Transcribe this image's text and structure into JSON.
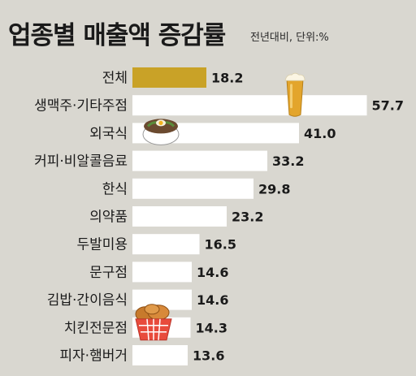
{
  "header": {
    "title": "업종별 매출액 증감률",
    "subtitle": "전년대비, 단위:%"
  },
  "colors": {
    "background": "#d9d7d0",
    "highlight_bar": "#c9a227",
    "bar": "#ffffff",
    "text": "#1a1a1a"
  },
  "chart_data": {
    "type": "bar",
    "orientation": "horizontal",
    "title": "업종별 매출액 증감률",
    "subtitle": "전년대비, 단위:%",
    "categories": [
      "전체",
      "생맥주·기타주점",
      "외국식",
      "커피·비알콜음료",
      "한식",
      "의약품",
      "두발미용",
      "문구점",
      "김밥·간이음식",
      "치킨전문점",
      "피자·햄버거"
    ],
    "values": [
      18.2,
      57.7,
      41.0,
      33.2,
      29.8,
      23.2,
      16.5,
      14.6,
      14.6,
      14.3,
      13.6
    ],
    "value_labels": [
      "18.2",
      "57.7",
      "41.0",
      "33.2",
      "29.8",
      "23.2",
      "16.5",
      "14.6",
      "14.6",
      "14.3",
      "13.6"
    ],
    "highlight_index": 0,
    "xlim": [
      0,
      60
    ],
    "grid": false,
    "legend": "none",
    "icons": [
      "beer-glass-icon",
      "noodle-bowl-icon",
      "fried-chicken-basket-icon"
    ]
  }
}
